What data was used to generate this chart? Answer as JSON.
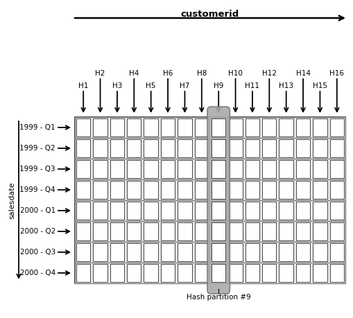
{
  "title_top": "customerid",
  "title_left": "salesdate",
  "row_labels": [
    "1999 - Q1",
    "1999 - Q2",
    "1999 - Q3",
    "1999 - Q4",
    "2000 - Q1",
    "2000 - Q2",
    "2000 - Q3",
    "2000 - Q4"
  ],
  "hash_labels_even": [
    "H2",
    "H4",
    "H6",
    "H8",
    "H10",
    "H12",
    "H14",
    "H16"
  ],
  "hash_labels_odd": [
    "H1",
    "H3",
    "H5",
    "H7",
    "H9",
    "H11",
    "H13",
    "H15"
  ],
  "num_cols": 16,
  "num_rows": 8,
  "highlight_col": 8,
  "annotation": "Hash partition #9",
  "bg_color": "#e8e8e8",
  "cell_color": "#ffffff",
  "highlight_color": "#aaaaaa",
  "border_color": "#444444",
  "row_border_color": "#666666"
}
